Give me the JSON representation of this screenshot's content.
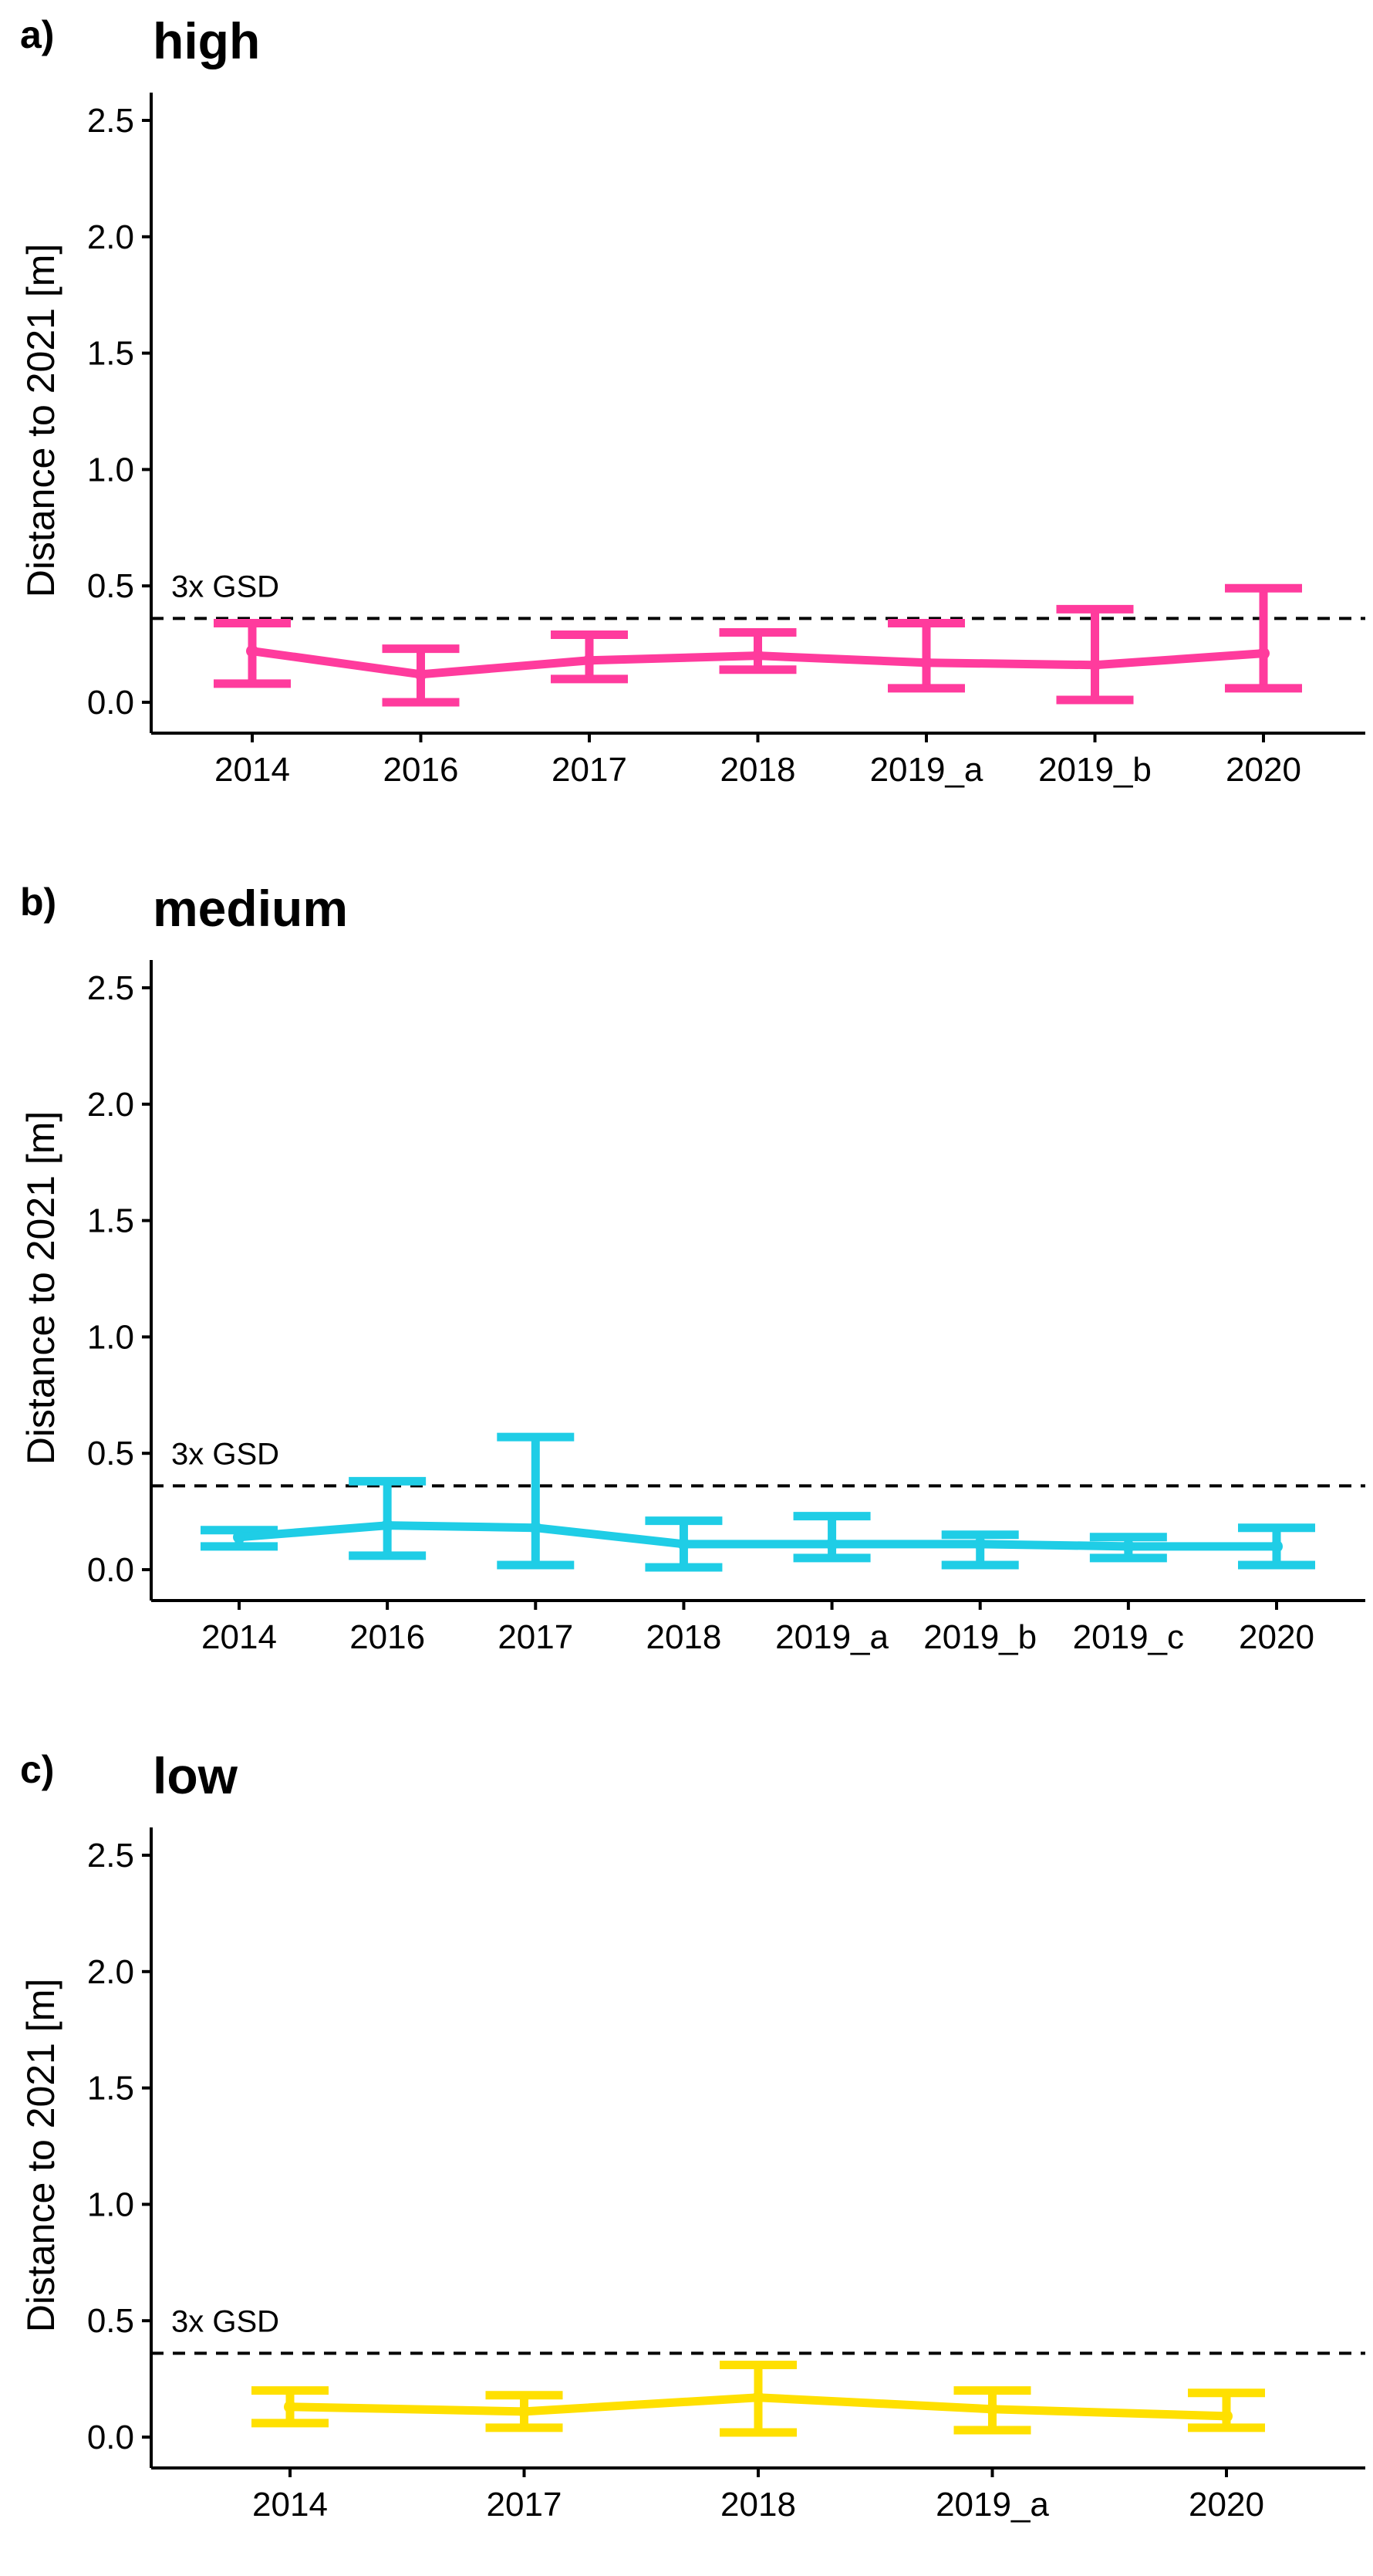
{
  "figure": {
    "ylabel": "Distance to 2021 [m]",
    "y_ticks": [
      0.0,
      0.5,
      1.0,
      1.5,
      2.0,
      2.5
    ],
    "ylim": [
      -0.06,
      2.63
    ],
    "reference_line": {
      "label": "3x GSD",
      "value": 0.36
    }
  },
  "chart_data": [
    {
      "type": "line",
      "panel_label": "a)",
      "title": "high",
      "color": "#ff3b9d",
      "ylabel": "Distance to 2021 [m]",
      "categories": [
        "2014",
        "2016",
        "2017",
        "2018",
        "2019_a",
        "2019_b",
        "2020"
      ],
      "values": [
        0.22,
        0.12,
        0.18,
        0.2,
        0.17,
        0.16,
        0.21
      ],
      "error_low": [
        0.08,
        0.0,
        0.1,
        0.14,
        0.06,
        0.01,
        0.06
      ],
      "error_high": [
        0.34,
        0.23,
        0.29,
        0.3,
        0.34,
        0.4,
        0.49
      ],
      "ylim": [
        -0.06,
        2.63
      ],
      "reference_line": {
        "label": "3x GSD",
        "value": 0.36
      }
    },
    {
      "type": "line",
      "panel_label": "b)",
      "title": "medium",
      "color": "#1fcde6",
      "ylabel": "Distance to 2021 [m]",
      "categories": [
        "2014",
        "2016",
        "2017",
        "2018",
        "2019_a",
        "2019_b",
        "2019_c",
        "2020"
      ],
      "values": [
        0.14,
        0.19,
        0.18,
        0.11,
        0.11,
        0.11,
        0.1,
        0.1
      ],
      "error_low": [
        0.1,
        0.06,
        0.02,
        0.01,
        0.05,
        0.02,
        0.05,
        0.02
      ],
      "error_high": [
        0.17,
        0.38,
        0.57,
        0.21,
        0.23,
        0.15,
        0.14,
        0.18
      ],
      "ylim": [
        -0.06,
        2.63
      ],
      "reference_line": {
        "label": "3x GSD",
        "value": 0.36
      }
    },
    {
      "type": "line",
      "panel_label": "c)",
      "title": "low",
      "color": "#ffe000",
      "ylabel": "Distance to 2021 [m]",
      "categories": [
        "2014",
        "2017",
        "2018",
        "2019_a",
        "2020"
      ],
      "values": [
        0.13,
        0.11,
        0.17,
        0.12,
        0.09
      ],
      "error_low": [
        0.06,
        0.04,
        0.02,
        0.03,
        0.04
      ],
      "error_high": [
        0.2,
        0.18,
        0.31,
        0.2,
        0.19
      ],
      "ylim": [
        -0.06,
        2.63
      ],
      "reference_line": {
        "label": "3x GSD",
        "value": 0.36
      }
    }
  ]
}
